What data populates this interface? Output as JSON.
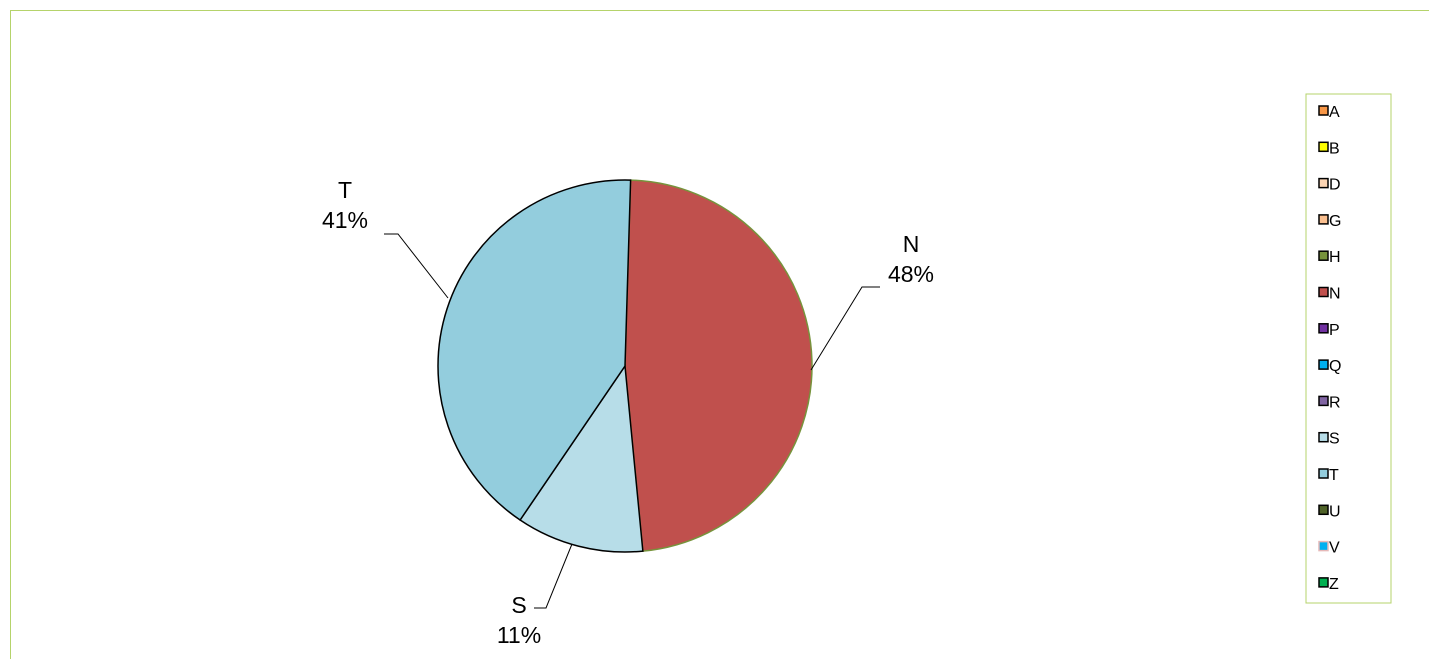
{
  "chart_data": {
    "type": "pie",
    "title": "",
    "slices": [
      {
        "label": "N",
        "percent": 48,
        "color": "#c0504d"
      },
      {
        "label": "S",
        "percent": 11,
        "color": "#b7dde8"
      },
      {
        "label": "T",
        "percent": 41,
        "color": "#93cddd"
      }
    ],
    "legend": {
      "placement": "right",
      "entries": [
        {
          "label": "A",
          "color": "#f79646"
        },
        {
          "label": "B",
          "color": "#ffff00"
        },
        {
          "label": "D",
          "color": "#fcd5b4"
        },
        {
          "label": "G",
          "color": "#fabf8f"
        },
        {
          "label": "H",
          "color": "#77933c"
        },
        {
          "label": "N",
          "color": "#c0504d"
        },
        {
          "label": "P",
          "color": "#7030a0"
        },
        {
          "label": "Q",
          "color": "#00b0f0"
        },
        {
          "label": "R",
          "color": "#8064a2"
        },
        {
          "label": "S",
          "color": "#b7dde8"
        },
        {
          "label": "T",
          "color": "#93cddd"
        },
        {
          "label": "U",
          "color": "#4f6228"
        },
        {
          "label": "V",
          "color": "#00b0f0"
        },
        {
          "label": "Z",
          "color": "#00b050"
        }
      ]
    }
  }
}
